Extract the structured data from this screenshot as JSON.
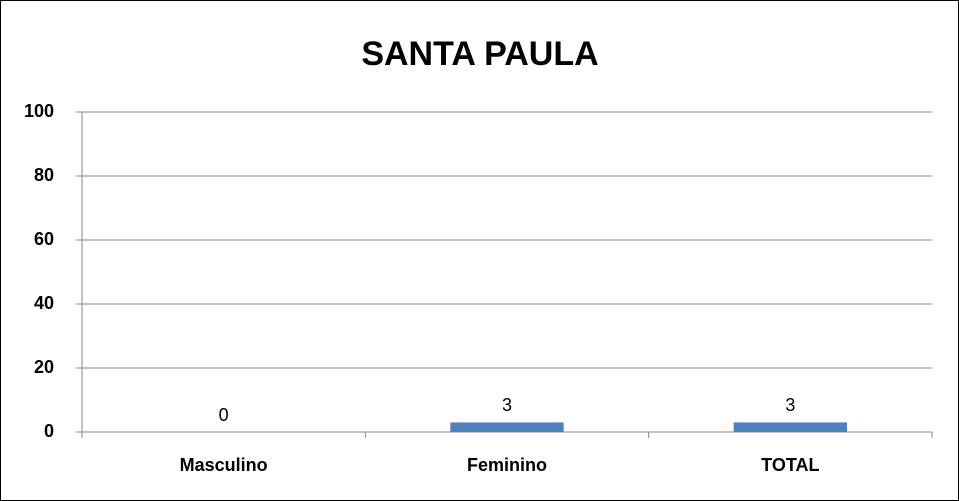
{
  "chart_data": {
    "type": "bar",
    "title": "SANTA PAULA",
    "categories": [
      "Masculino",
      "Feminino",
      "TOTAL"
    ],
    "values": [
      0,
      3,
      3
    ],
    "color": "#4f81bd",
    "ylim": [
      0,
      100
    ],
    "yticks": [
      0,
      20,
      40,
      60,
      80,
      100
    ],
    "grid": true
  }
}
